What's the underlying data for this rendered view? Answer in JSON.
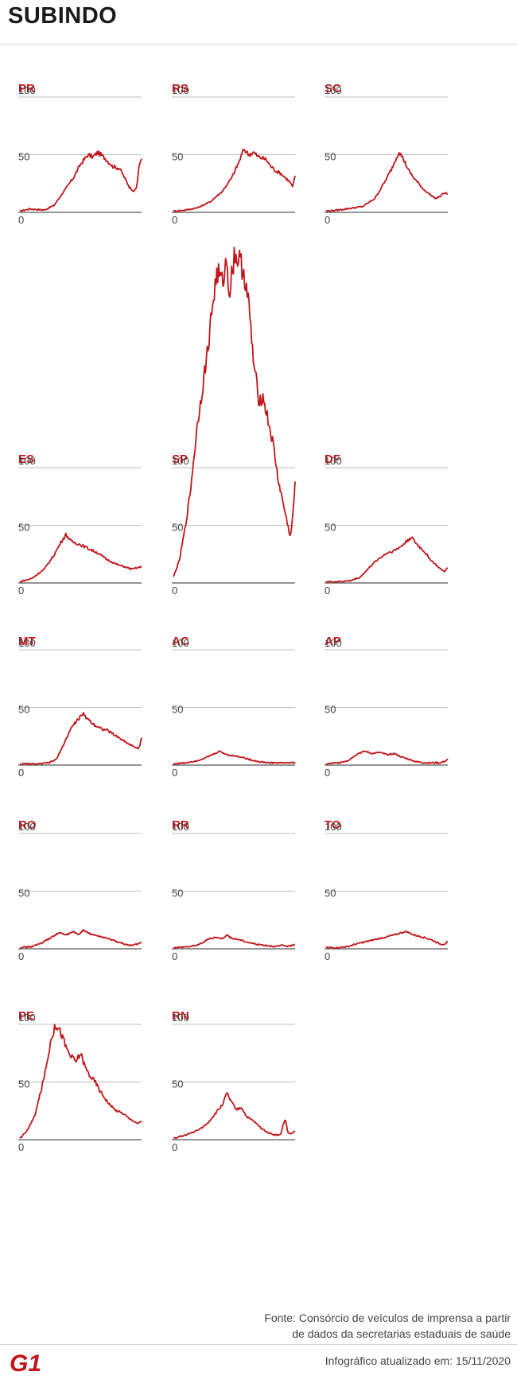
{
  "page": {
    "title": "SUBINDO"
  },
  "footer": {
    "source_line1": "Fonte: Consórcio de veículos de imprensa a partir",
    "source_line2": "de dados da secretarias estaduais de saúde",
    "updated": "Infográfico atualizado em: 15/11/2020",
    "logo_text": "G1"
  },
  "colors": {
    "line": "#c0161a",
    "label": "#c0161a",
    "grid": "#bdbdbd",
    "axis": "#555555",
    "tick": "#444444"
  },
  "chart_data": [
    {
      "type": "line",
      "title": "PR",
      "ylim": [
        0,
        100
      ],
      "yticks": [
        0,
        50,
        100
      ],
      "keypoints": [
        [
          0,
          1
        ],
        [
          0.08,
          3
        ],
        [
          0.2,
          2
        ],
        [
          0.28,
          6
        ],
        [
          0.36,
          18
        ],
        [
          0.44,
          30
        ],
        [
          0.5,
          42
        ],
        [
          0.56,
          50
        ],
        [
          0.6,
          48
        ],
        [
          0.64,
          52
        ],
        [
          0.7,
          47
        ],
        [
          0.76,
          40
        ],
        [
          0.82,
          38
        ],
        [
          0.86,
          30
        ],
        [
          0.9,
          22
        ],
        [
          0.94,
          18
        ],
        [
          0.96,
          22
        ],
        [
          0.98,
          40
        ],
        [
          1.0,
          48
        ]
      ]
    },
    {
      "type": "line",
      "title": "RS",
      "ylim": [
        0,
        100
      ],
      "yticks": [
        0,
        50,
        100
      ],
      "keypoints": [
        [
          0,
          1
        ],
        [
          0.1,
          2
        ],
        [
          0.2,
          4
        ],
        [
          0.3,
          9
        ],
        [
          0.4,
          18
        ],
        [
          0.48,
          30
        ],
        [
          0.54,
          44
        ],
        [
          0.58,
          55
        ],
        [
          0.62,
          50
        ],
        [
          0.66,
          52
        ],
        [
          0.7,
          48
        ],
        [
          0.76,
          46
        ],
        [
          0.8,
          40
        ],
        [
          0.84,
          36
        ],
        [
          0.88,
          34
        ],
        [
          0.92,
          30
        ],
        [
          0.96,
          26
        ],
        [
          0.98,
          22
        ],
        [
          1.0,
          31
        ]
      ]
    },
    {
      "type": "line",
      "title": "SC",
      "ylim": [
        0,
        100
      ],
      "yticks": [
        0,
        50,
        100
      ],
      "keypoints": [
        [
          0,
          1
        ],
        [
          0.1,
          2
        ],
        [
          0.3,
          5
        ],
        [
          0.4,
          12
        ],
        [
          0.48,
          26
        ],
        [
          0.54,
          38
        ],
        [
          0.58,
          48
        ],
        [
          0.6,
          53
        ],
        [
          0.64,
          45
        ],
        [
          0.68,
          36
        ],
        [
          0.72,
          30
        ],
        [
          0.76,
          25
        ],
        [
          0.8,
          20
        ],
        [
          0.86,
          15
        ],
        [
          0.9,
          12
        ],
        [
          0.94,
          14
        ],
        [
          0.97,
          17
        ],
        [
          1.0,
          16
        ]
      ]
    },
    {
      "type": "line",
      "title": "ES",
      "ylim": [
        0,
        100
      ],
      "yticks": [
        0,
        50,
        100
      ],
      "keypoints": [
        [
          0,
          1
        ],
        [
          0.1,
          4
        ],
        [
          0.2,
          12
        ],
        [
          0.28,
          24
        ],
        [
          0.34,
          36
        ],
        [
          0.38,
          42
        ],
        [
          0.42,
          36
        ],
        [
          0.48,
          34
        ],
        [
          0.56,
          30
        ],
        [
          0.64,
          26
        ],
        [
          0.72,
          20
        ],
        [
          0.8,
          16
        ],
        [
          0.86,
          14
        ],
        [
          0.92,
          12
        ],
        [
          0.96,
          13
        ],
        [
          1.0,
          14
        ]
      ]
    },
    {
      "type": "line",
      "title": "SP",
      "ylim": [
        0,
        100
      ],
      "yticks": [
        0,
        50,
        100
      ],
      "keypoints": [
        [
          0,
          5
        ],
        [
          0.05,
          20
        ],
        [
          0.1,
          50
        ],
        [
          0.14,
          80
        ],
        [
          0.17,
          110
        ],
        [
          0.2,
          140
        ],
        [
          0.24,
          170
        ],
        [
          0.28,
          200
        ],
        [
          0.32,
          240
        ],
        [
          0.36,
          270
        ],
        [
          0.4,
          260
        ],
        [
          0.44,
          280
        ],
        [
          0.46,
          250
        ],
        [
          0.5,
          285
        ],
        [
          0.54,
          280
        ],
        [
          0.58,
          270
        ],
        [
          0.62,
          240
        ],
        [
          0.66,
          190
        ],
        [
          0.7,
          160
        ],
        [
          0.74,
          160
        ],
        [
          0.78,
          140
        ],
        [
          0.82,
          120
        ],
        [
          0.86,
          90
        ],
        [
          0.9,
          70
        ],
        [
          0.94,
          50
        ],
        [
          0.96,
          40
        ],
        [
          0.97,
          45
        ],
        [
          1.0,
          85
        ]
      ]
    },
    {
      "type": "line",
      "title": "DF",
      "ylim": [
        0,
        100
      ],
      "yticks": [
        0,
        50,
        100
      ],
      "keypoints": [
        [
          0,
          1
        ],
        [
          0.1,
          1
        ],
        [
          0.2,
          2
        ],
        [
          0.28,
          5
        ],
        [
          0.36,
          14
        ],
        [
          0.42,
          20
        ],
        [
          0.5,
          26
        ],
        [
          0.56,
          28
        ],
        [
          0.62,
          32
        ],
        [
          0.66,
          36
        ],
        [
          0.7,
          40
        ],
        [
          0.74,
          34
        ],
        [
          0.8,
          28
        ],
        [
          0.86,
          20
        ],
        [
          0.9,
          16
        ],
        [
          0.94,
          12
        ],
        [
          0.97,
          10
        ],
        [
          1.0,
          13
        ]
      ]
    },
    {
      "type": "line",
      "title": "MT",
      "ylim": [
        0,
        100
      ],
      "yticks": [
        0,
        50,
        100
      ],
      "keypoints": [
        [
          0,
          1
        ],
        [
          0.16,
          1
        ],
        [
          0.24,
          2
        ],
        [
          0.3,
          5
        ],
        [
          0.36,
          18
        ],
        [
          0.42,
          32
        ],
        [
          0.48,
          40
        ],
        [
          0.52,
          44
        ],
        [
          0.56,
          40
        ],
        [
          0.6,
          36
        ],
        [
          0.66,
          32
        ],
        [
          0.72,
          30
        ],
        [
          0.78,
          26
        ],
        [
          0.84,
          22
        ],
        [
          0.9,
          18
        ],
        [
          0.94,
          16
        ],
        [
          0.97,
          14
        ],
        [
          0.98,
          15
        ],
        [
          1.0,
          24
        ]
      ]
    },
    {
      "type": "line",
      "title": "AC",
      "ylim": [
        0,
        100
      ],
      "yticks": [
        0,
        50,
        100
      ],
      "keypoints": [
        [
          0,
          1
        ],
        [
          0.1,
          2
        ],
        [
          0.2,
          4
        ],
        [
          0.28,
          7
        ],
        [
          0.34,
          10
        ],
        [
          0.38,
          12
        ],
        [
          0.44,
          9
        ],
        [
          0.5,
          8
        ],
        [
          0.56,
          7
        ],
        [
          0.62,
          5
        ],
        [
          0.7,
          3
        ],
        [
          0.78,
          2
        ],
        [
          0.86,
          2
        ],
        [
          0.92,
          2
        ],
        [
          1.0,
          2
        ]
      ]
    },
    {
      "type": "line",
      "title": "AP",
      "ylim": [
        0,
        100
      ],
      "yticks": [
        0,
        50,
        100
      ],
      "keypoints": [
        [
          0,
          1
        ],
        [
          0.1,
          2
        ],
        [
          0.18,
          4
        ],
        [
          0.26,
          10
        ],
        [
          0.32,
          12
        ],
        [
          0.38,
          10
        ],
        [
          0.44,
          11
        ],
        [
          0.5,
          9
        ],
        [
          0.56,
          10
        ],
        [
          0.62,
          7
        ],
        [
          0.68,
          5
        ],
        [
          0.74,
          3
        ],
        [
          0.8,
          2
        ],
        [
          0.86,
          2
        ],
        [
          0.9,
          2
        ],
        [
          0.94,
          2
        ],
        [
          0.97,
          3
        ],
        [
          1.0,
          5
        ]
      ]
    },
    {
      "type": "line",
      "title": "RO",
      "ylim": [
        0,
        100
      ],
      "yticks": [
        0,
        50,
        100
      ],
      "keypoints": [
        [
          0,
          1
        ],
        [
          0.1,
          2
        ],
        [
          0.18,
          5
        ],
        [
          0.26,
          10
        ],
        [
          0.32,
          14
        ],
        [
          0.38,
          12
        ],
        [
          0.44,
          15
        ],
        [
          0.48,
          12
        ],
        [
          0.52,
          16
        ],
        [
          0.58,
          13
        ],
        [
          0.64,
          11
        ],
        [
          0.72,
          9
        ],
        [
          0.8,
          6
        ],
        [
          0.86,
          4
        ],
        [
          0.92,
          3
        ],
        [
          0.96,
          4
        ],
        [
          1.0,
          5
        ]
      ]
    },
    {
      "type": "line",
      "title": "RR",
      "ylim": [
        0,
        100
      ],
      "yticks": [
        0,
        50,
        100
      ],
      "keypoints": [
        [
          0,
          1
        ],
        [
          0.14,
          2
        ],
        [
          0.22,
          4
        ],
        [
          0.28,
          8
        ],
        [
          0.34,
          10
        ],
        [
          0.4,
          9
        ],
        [
          0.44,
          12
        ],
        [
          0.48,
          9
        ],
        [
          0.54,
          8
        ],
        [
          0.6,
          6
        ],
        [
          0.68,
          4
        ],
        [
          0.76,
          3
        ],
        [
          0.84,
          2
        ],
        [
          0.9,
          3
        ],
        [
          0.95,
          2
        ],
        [
          1.0,
          4
        ]
      ]
    },
    {
      "type": "line",
      "title": "TO",
      "ylim": [
        0,
        100
      ],
      "yticks": [
        0,
        50,
        100
      ],
      "keypoints": [
        [
          0,
          1
        ],
        [
          0.1,
          1
        ],
        [
          0.18,
          2
        ],
        [
          0.24,
          4
        ],
        [
          0.32,
          6
        ],
        [
          0.4,
          8
        ],
        [
          0.48,
          10
        ],
        [
          0.56,
          12
        ],
        [
          0.62,
          14
        ],
        [
          0.66,
          15
        ],
        [
          0.72,
          12
        ],
        [
          0.8,
          10
        ],
        [
          0.86,
          8
        ],
        [
          0.9,
          6
        ],
        [
          0.94,
          4
        ],
        [
          0.97,
          4
        ],
        [
          1.0,
          6
        ]
      ]
    },
    {
      "type": "line",
      "title": "PE",
      "ylim": [
        0,
        100
      ],
      "yticks": [
        0,
        50,
        100
      ],
      "keypoints": [
        [
          0,
          1
        ],
        [
          0.06,
          8
        ],
        [
          0.12,
          20
        ],
        [
          0.18,
          45
        ],
        [
          0.22,
          65
        ],
        [
          0.26,
          90
        ],
        [
          0.3,
          100
        ],
        [
          0.34,
          92
        ],
        [
          0.38,
          80
        ],
        [
          0.42,
          72
        ],
        [
          0.46,
          68
        ],
        [
          0.5,
          75
        ],
        [
          0.54,
          62
        ],
        [
          0.58,
          55
        ],
        [
          0.62,
          50
        ],
        [
          0.66,
          42
        ],
        [
          0.7,
          36
        ],
        [
          0.74,
          30
        ],
        [
          0.78,
          26
        ],
        [
          0.82,
          24
        ],
        [
          0.86,
          22
        ],
        [
          0.9,
          18
        ],
        [
          0.94,
          16
        ],
        [
          0.97,
          14
        ],
        [
          1.0,
          16
        ]
      ]
    },
    {
      "type": "line",
      "title": "RN",
      "ylim": [
        0,
        100
      ],
      "yticks": [
        0,
        50,
        100
      ],
      "keypoints": [
        [
          0,
          1
        ],
        [
          0.1,
          4
        ],
        [
          0.2,
          8
        ],
        [
          0.28,
          14
        ],
        [
          0.34,
          22
        ],
        [
          0.4,
          30
        ],
        [
          0.44,
          40
        ],
        [
          0.48,
          32
        ],
        [
          0.52,
          26
        ],
        [
          0.56,
          28
        ],
        [
          0.6,
          20
        ],
        [
          0.66,
          16
        ],
        [
          0.72,
          10
        ],
        [
          0.78,
          6
        ],
        [
          0.84,
          4
        ],
        [
          0.88,
          4
        ],
        [
          0.9,
          12
        ],
        [
          0.92,
          18
        ],
        [
          0.94,
          6
        ],
        [
          0.97,
          5
        ],
        [
          1.0,
          7
        ]
      ]
    }
  ]
}
